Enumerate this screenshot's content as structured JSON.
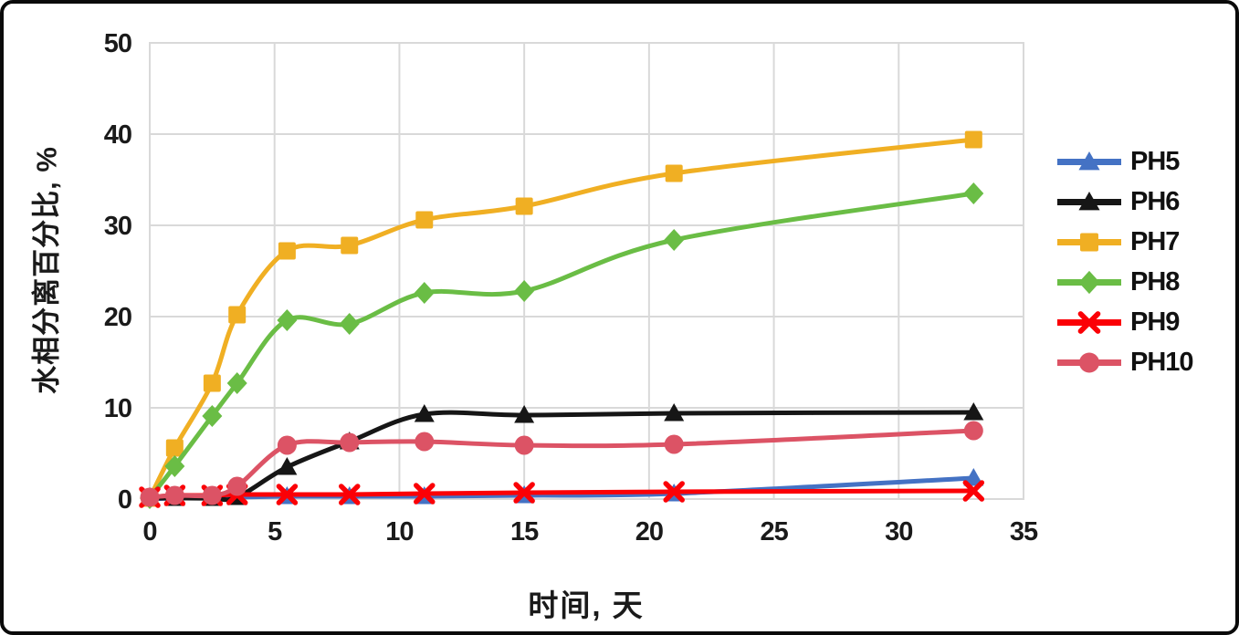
{
  "chart_data": {
    "type": "line",
    "title": "",
    "xlabel": "时间, 天",
    "ylabel": "水相分离百分比, %",
    "xlim": [
      0,
      35
    ],
    "ylim": [
      0,
      50
    ],
    "xticks": [
      0,
      5,
      10,
      15,
      20,
      25,
      30,
      35
    ],
    "yticks": [
      0,
      10,
      20,
      30,
      40,
      50
    ],
    "grid": true,
    "gridline_color": "#D9D9D9",
    "legend_position": "right",
    "x": [
      0,
      1,
      2.5,
      3.5,
      5.5,
      8,
      11,
      15,
      21,
      33
    ],
    "series": [
      {
        "name": "PH5",
        "color": "#4472C4",
        "marker": "triangle",
        "values": [
          0,
          0.1,
          0.1,
          0.2,
          0.3,
          0.3,
          0.3,
          0.4,
          0.6,
          2.3
        ]
      },
      {
        "name": "PH6",
        "color": "#161616",
        "marker": "triangle",
        "values": [
          0.1,
          0.1,
          0.1,
          0.2,
          3.5,
          6.3,
          9.3,
          9.2,
          9.4,
          9.5
        ]
      },
      {
        "name": "PH7",
        "color": "#F0AF23",
        "marker": "square",
        "values": [
          0.1,
          5.6,
          12.7,
          20.2,
          27.2,
          27.8,
          30.6,
          32.1,
          35.7,
          39.4
        ]
      },
      {
        "name": "PH8",
        "color": "#6ABD45",
        "marker": "diamond",
        "values": [
          0.1,
          3.6,
          9.1,
          12.7,
          19.6,
          19.2,
          22.6,
          22.8,
          28.4,
          33.5
        ]
      },
      {
        "name": "PH9",
        "color": "#FB0006",
        "marker": "x",
        "values": [
          0.2,
          0.4,
          0.4,
          0.5,
          0.5,
          0.5,
          0.6,
          0.7,
          0.8,
          0.9
        ]
      },
      {
        "name": "PH10",
        "color": "#DC5365",
        "marker": "circle",
        "values": [
          0.2,
          0.4,
          0.4,
          1.4,
          5.9,
          6.2,
          6.3,
          5.9,
          6.0,
          7.5
        ]
      }
    ]
  }
}
